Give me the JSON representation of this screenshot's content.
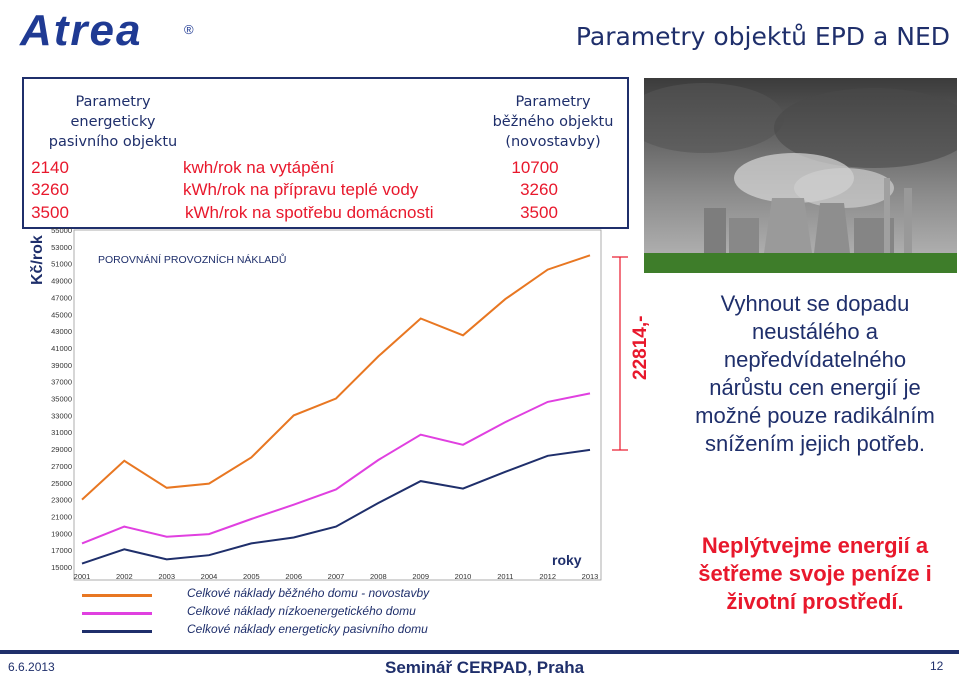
{
  "header": {
    "logo": "Atrea",
    "logo_reg": "®",
    "title": "Parametry objektů EPD a NED"
  },
  "params": {
    "left_header": [
      "Parametry",
      "energeticky",
      "pasivního objektu"
    ],
    "right_header": [
      "Parametry",
      "běžného objektu",
      "(novostavby)"
    ],
    "rows": [
      {
        "left": "2140",
        "label": "kwh/rok na vytápění",
        "right": "10700"
      },
      {
        "left": "3260",
        "label": "kWh/rok na přípravu  teplé vody",
        "right": "3260"
      },
      {
        "left": "3500",
        "label": "kWh/rok na spotřebu domácnosti",
        "right": "3500"
      }
    ]
  },
  "chart_data": {
    "type": "line",
    "title": "POROVNÁNÍ PROVOZNÍCH NÁKLADŮ",
    "ylabel": "Kč/rok",
    "xlabel": "roky",
    "x": [
      "2001",
      "2002",
      "2003",
      "2004",
      "2005",
      "2006",
      "2007",
      "2008",
      "2009",
      "2010",
      "2011",
      "2012",
      "2013"
    ],
    "yticks": [
      15000,
      17000,
      19000,
      21000,
      23000,
      25000,
      27000,
      29000,
      31000,
      33000,
      35000,
      37000,
      39000,
      41000,
      43000,
      45000,
      47000,
      49000,
      51000,
      53000,
      55000
    ],
    "ylim": [
      15000,
      55000
    ],
    "grid": false,
    "legend_position": "bottom",
    "series": [
      {
        "name": "Celkové náklady běžného domu - novostavby",
        "color": "#e87722",
        "values": [
          23000,
          27600,
          24400,
          24900,
          28000,
          33000,
          35000,
          40000,
          44500,
          42500,
          46800,
          50300,
          52000
        ]
      },
      {
        "name": "Celkové náklady nízkoenergetického domu",
        "color": "#e040e0",
        "values": [
          17800,
          19800,
          18600,
          18900,
          20700,
          22400,
          24200,
          27700,
          30700,
          29500,
          32200,
          34600,
          35600
        ]
      },
      {
        "name": "Celkové náklady energeticky pasivního domu",
        "color": "#1f2f6b",
        "values": [
          15400,
          17100,
          15900,
          16400,
          17800,
          18500,
          19800,
          22600,
          25200,
          24300,
          26300,
          28200,
          28900
        ]
      }
    ]
  },
  "span_label": "22814,-",
  "message_blue": "Vyhnout se dopadu neustálého a nepředvídatelného nárůstu cen energií je možné pouze radikálním snížením jejich potřeb.",
  "message_red": "Neplýtvejme energií a šetřeme svoje peníze i životní prostředí.",
  "footer": {
    "date": "6.6.2013",
    "center": "Seminář CERPAD, Praha",
    "page": "12"
  },
  "colors": {
    "brand_blue": "#1f2f6b",
    "accent_red": "#e8182c",
    "orange": "#e87722",
    "magenta": "#e040e0"
  }
}
